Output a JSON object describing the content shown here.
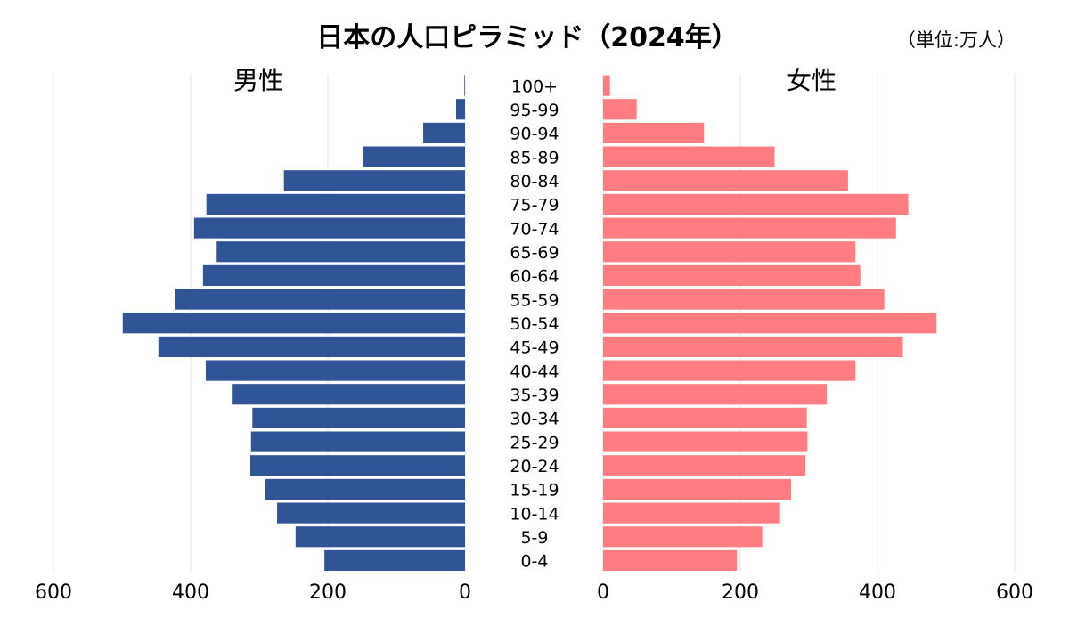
{
  "chart_data": {
    "type": "bar",
    "orientation": "horizontal-pyramid",
    "title": "日本の人口ピラミッド（2024年）",
    "unit_note": "（単位:万人）",
    "categories": [
      "100+",
      "95-99",
      "90-94",
      "85-89",
      "80-84",
      "75-79",
      "70-74",
      "65-69",
      "60-64",
      "55-59",
      "50-54",
      "45-49",
      "40-44",
      "35-39",
      "30-34",
      "25-29",
      "20-24",
      "15-19",
      "10-14",
      "5-9",
      "0-4"
    ],
    "series": [
      {
        "name": "男性",
        "color": "#2f5597",
        "side": "left",
        "values": [
          1,
          13,
          61,
          149,
          264,
          377,
          395,
          362,
          382,
          423,
          499,
          447,
          378,
          340,
          310,
          312,
          313,
          291,
          274,
          247,
          205
        ]
      },
      {
        "name": "女性",
        "color": "#ff7c80",
        "side": "right",
        "values": [
          10,
          49,
          147,
          250,
          357,
          445,
          427,
          368,
          375,
          410,
          486,
          437,
          368,
          326,
          297,
          298,
          295,
          274,
          258,
          232,
          195
        ]
      }
    ],
    "xlim": [
      0,
      600
    ],
    "xticks": [
      "0",
      "200",
      "400",
      "600"
    ],
    "grid": true,
    "grid_color": "#e6e6e6"
  }
}
